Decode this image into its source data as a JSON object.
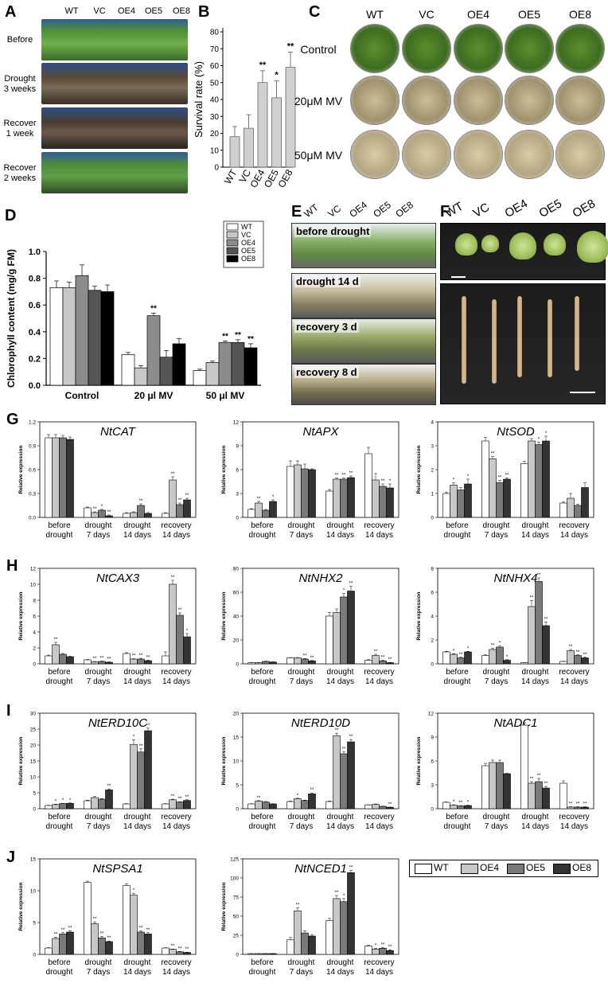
{
  "panels": {
    "A": {
      "label": "A",
      "genotypes": [
        "WT",
        "VC",
        "OE4",
        "OE5",
        "OE8"
      ],
      "rows": [
        "Before",
        "Drought\n3 weeks",
        "Recover\n1 week",
        "Recover\n2 weeks"
      ]
    },
    "B": {
      "label": "B",
      "chart_data": {
        "type": "bar",
        "ylabel": "Survival rate (%)",
        "categories": [
          "WT",
          "VC",
          "OE4",
          "OE5",
          "OE8"
        ],
        "values": [
          18,
          23,
          50,
          41,
          59
        ],
        "errors": [
          6,
          8,
          7,
          10,
          9
        ],
        "significance": [
          "",
          "",
          "**",
          "*",
          "**"
        ],
        "ylim": [
          0,
          80
        ],
        "yticks": [
          0,
          10,
          20,
          30,
          40,
          50,
          60,
          70,
          80
        ]
      }
    },
    "C": {
      "label": "C",
      "genotypes": [
        "WT",
        "VC",
        "OE4",
        "OE5",
        "OE8"
      ],
      "rows": [
        "Control",
        "20μM MV",
        "50μM MV"
      ]
    },
    "D": {
      "label": "D",
      "chart_data": {
        "type": "bar",
        "ylabel": "Chlorophyll content (mg/g FM)",
        "categories": [
          "Control",
          "20 μl MV",
          "50 μl MV"
        ],
        "series": [
          {
            "name": "WT",
            "values": [
              0.73,
              0.23,
              0.11
            ],
            "errors": [
              0.05,
              0.015,
              0.01
            ],
            "sig": [
              "",
              "",
              ""
            ]
          },
          {
            "name": "VC",
            "values": [
              0.73,
              0.13,
              0.17
            ],
            "errors": [
              0.04,
              0.015,
              0.01
            ],
            "sig": [
              "",
              "",
              ""
            ]
          },
          {
            "name": "OE4",
            "values": [
              0.82,
              0.52,
              0.32
            ],
            "errors": [
              0.08,
              0.02,
              0.01
            ],
            "sig": [
              "",
              "**",
              "**"
            ]
          },
          {
            "name": "OE5",
            "values": [
              0.71,
              0.21,
              0.32
            ],
            "errors": [
              0.03,
              0.05,
              0.02
            ],
            "sig": [
              "",
              "",
              "**"
            ]
          },
          {
            "name": "OE8",
            "values": [
              0.7,
              0.31,
              0.28
            ],
            "errors": [
              0.05,
              0.04,
              0.03
            ],
            "sig": [
              "",
              "",
              "**"
            ]
          }
        ],
        "colors": [
          "#ffffff",
          "#c8c8c8",
          "#8c8c8c",
          "#555555",
          "#000000"
        ],
        "ylim": [
          0,
          1.0
        ],
        "yticks": [
          "0.0",
          "0.2",
          "0.4",
          "0.6",
          "0.8",
          "1.0"
        ]
      }
    },
    "E": {
      "label": "E",
      "genotypes": [
        "WT",
        "VC",
        "OE4",
        "OE5",
        "OE8"
      ],
      "rows": [
        "before drought",
        "drought 14 d",
        "recovery 3 d",
        "recovery 8 d"
      ]
    },
    "F": {
      "label": "F",
      "genotypes": [
        "WT",
        "VC",
        "OE4",
        "OE5",
        "OE8"
      ]
    },
    "G": {
      "label": "G"
    },
    "H": {
      "label": "H"
    },
    "I": {
      "label": "I"
    },
    "J": {
      "label": "J"
    }
  },
  "expr_legend": [
    "WT",
    "OE4",
    "OE5",
    "OE8"
  ],
  "expr_colors": [
    "#ffffff",
    "#c8c8c8",
    "#7a7a7a",
    "#333333"
  ],
  "expr_ylabel": "Relative expression",
  "expr_conditions": [
    [
      "before",
      "drought"
    ],
    [
      "drought",
      "7 days"
    ],
    [
      "drought",
      "14 days"
    ],
    [
      "recovery",
      "14 days"
    ]
  ],
  "chart_data": [
    {
      "type": "bar",
      "gene": "NtCAT",
      "ylim": [
        0,
        1.2
      ],
      "yticks": [
        "0.0",
        "0.3",
        "0.6",
        "0.9",
        "1.2"
      ],
      "values": [
        [
          1.0,
          1.0,
          1.0,
          0.98
        ],
        [
          0.12,
          0.06,
          0.09,
          0.02
        ],
        [
          0.05,
          0.06,
          0.15,
          0.05
        ],
        [
          0.05,
          0.47,
          0.16,
          0.22
        ]
      ],
      "errors": [
        [
          0.04,
          0.04,
          0.03,
          0.03
        ],
        [
          0.01,
          0.01,
          0.01,
          0.01
        ],
        [
          0.01,
          0.01,
          0.02,
          0.01
        ],
        [
          0.01,
          0.04,
          0.02,
          0.02
        ]
      ],
      "sig": [
        [
          "",
          "",
          "",
          ""
        ],
        [
          "",
          "**",
          "*",
          "**"
        ],
        [
          "",
          "",
          "**",
          ""
        ],
        [
          "",
          "**",
          "**",
          "**"
        ]
      ]
    },
    {
      "type": "bar",
      "gene": "NtAPX",
      "ylim": [
        0,
        12
      ],
      "yticks": [
        "0",
        "3",
        "6",
        "9",
        "12"
      ],
      "values": [
        [
          1.0,
          1.8,
          0.9,
          2.0
        ],
        [
          6.4,
          6.6,
          6.1,
          6.0
        ],
        [
          3.3,
          4.8,
          4.8,
          5.0
        ],
        [
          8.0,
          4.7,
          3.9,
          3.7
        ]
      ],
      "errors": [
        [
          0.1,
          0.2,
          0.1,
          0.2
        ],
        [
          0.7,
          0.5,
          0.6,
          0.1
        ],
        [
          0.2,
          0.15,
          0.15,
          0.2
        ],
        [
          0.8,
          0.8,
          0.3,
          0.5
        ]
      ],
      "sig": [
        [
          "",
          "**",
          "",
          "*"
        ],
        [
          "",
          "",
          "",
          ""
        ],
        [
          "",
          "**",
          "**",
          "**"
        ],
        [
          "",
          "",
          "**",
          "*"
        ]
      ]
    },
    {
      "type": "bar",
      "gene": "NtSOD",
      "ylim": [
        0,
        4
      ],
      "yticks": [
        "0",
        "1",
        "2",
        "3",
        "4"
      ],
      "values": [
        [
          1.0,
          1.35,
          1.15,
          1.4
        ],
        [
          3.2,
          2.45,
          1.45,
          1.6
        ],
        [
          2.25,
          3.2,
          3.05,
          3.2
        ],
        [
          0.6,
          0.8,
          0.5,
          1.25
        ]
      ],
      "errors": [
        [
          0.05,
          0.1,
          0.1,
          0.2
        ],
        [
          0.15,
          0.1,
          0.1,
          0.05
        ],
        [
          0.1,
          0.1,
          0.1,
          0.2
        ],
        [
          0.05,
          0.2,
          0.05,
          0.2
        ]
      ],
      "sig": [
        [
          "",
          "*",
          "",
          "*"
        ],
        [
          "",
          "**",
          "**",
          "**"
        ],
        [
          "",
          "*",
          "*",
          "*"
        ],
        [
          "",
          "",
          "",
          ""
        ]
      ]
    },
    {
      "type": "bar",
      "gene": "NtCAX3",
      "ylim": [
        0,
        12
      ],
      "yticks": [
        "0",
        "2",
        "4",
        "6",
        "8",
        "10",
        "12"
      ],
      "values": [
        [
          1.0,
          2.4,
          1.2,
          0.9
        ],
        [
          0.5,
          0.25,
          0.3,
          0.2
        ],
        [
          1.3,
          0.6,
          0.6,
          0.4
        ],
        [
          1.0,
          10.0,
          6.1,
          3.4
        ]
      ],
      "errors": [
        [
          0.1,
          0.3,
          0.1,
          0.05
        ],
        [
          0.05,
          0.05,
          0.05,
          0.05
        ],
        [
          0.1,
          0.05,
          0.1,
          0.05
        ],
        [
          0.5,
          0.5,
          0.3,
          0.4
        ]
      ],
      "sig": [
        [
          "",
          "**",
          "",
          ""
        ],
        [
          "",
          "**",
          "**",
          "**"
        ],
        [
          "",
          "**",
          "**",
          "**"
        ],
        [
          "",
          "**",
          "**",
          "*"
        ]
      ]
    },
    {
      "type": "bar",
      "gene": "NtNHX2",
      "ylim": [
        0,
        80
      ],
      "yticks": [
        "0",
        "20",
        "40",
        "60",
        "80"
      ],
      "values": [
        [
          1.0,
          1.0,
          2.0,
          1.5
        ],
        [
          5.0,
          5.0,
          4.0,
          2.5
        ],
        [
          40,
          43,
          56,
          61
        ],
        [
          3.0,
          7.0,
          2.5,
          1.0
        ]
      ],
      "errors": [
        [
          0.1,
          0.1,
          0.3,
          0.2
        ],
        [
          0.3,
          0.3,
          0.5,
          0.3
        ],
        [
          3,
          3,
          3,
          4
        ],
        [
          0.5,
          1,
          0.5,
          0.2
        ]
      ],
      "sig": [
        [
          "",
          "",
          "",
          ""
        ],
        [
          "",
          "",
          "**",
          "**"
        ],
        [
          "",
          "",
          "*",
          "**"
        ],
        [
          "",
          "**",
          "**",
          "**"
        ]
      ]
    },
    {
      "type": "bar",
      "gene": "NtNHX4",
      "ylim": [
        0,
        8
      ],
      "yticks": [
        "0",
        "2",
        "4",
        "6",
        "8"
      ],
      "values": [
        [
          1.0,
          0.8,
          0.5,
          1.0
        ],
        [
          0.7,
          1.2,
          1.4,
          0.3
        ],
        [
          0.1,
          4.8,
          6.9,
          3.2
        ],
        [
          0.2,
          1.1,
          0.7,
          0.5
        ]
      ],
      "errors": [
        [
          0.05,
          0.05,
          0.05,
          0.05
        ],
        [
          0.05,
          0.1,
          0.1,
          0.05
        ],
        [
          0.02,
          0.5,
          0.3,
          0.3
        ],
        [
          0.02,
          0.1,
          0.05,
          0.05
        ]
      ],
      "sig": [
        [
          "",
          "*",
          "**",
          "*"
        ],
        [
          "",
          "**",
          "*",
          "*"
        ],
        [
          "",
          "**",
          "**",
          "**"
        ],
        [
          "",
          "**",
          "**",
          "**"
        ]
      ]
    },
    {
      "type": "bar",
      "gene": "NtERD10C",
      "ylim": [
        0,
        30
      ],
      "yticks": [
        "0",
        "5",
        "10",
        "15",
        "20",
        "25",
        "30"
      ],
      "values": [
        [
          1.0,
          1.3,
          1.6,
          1.7
        ],
        [
          2.5,
          3.5,
          3.0,
          5.9
        ],
        [
          1.5,
          20.2,
          17.8,
          24.5
        ],
        [
          1.5,
          2.8,
          2.1,
          2.6
        ]
      ],
      "errors": [
        [
          0.1,
          0.1,
          0.1,
          0.1
        ],
        [
          0.2,
          0.3,
          0.2,
          0.3
        ],
        [
          0.1,
          1.5,
          1.0,
          0.8
        ],
        [
          0.1,
          0.2,
          0.1,
          0.2
        ]
      ],
      "sig": [
        [
          "",
          "*",
          "*",
          "*"
        ],
        [
          "",
          "",
          "",
          "**"
        ],
        [
          "",
          "*",
          "**",
          "**"
        ],
        [
          "",
          "**",
          "**",
          "**"
        ]
      ]
    },
    {
      "type": "bar",
      "gene": "NtERD10D",
      "ylim": [
        0,
        20
      ],
      "yticks": [
        "0",
        "5",
        "10",
        "15",
        "20"
      ],
      "values": [
        [
          1.0,
          1.6,
          1.4,
          1.0
        ],
        [
          1.5,
          2.1,
          1.7,
          3.1
        ],
        [
          1.5,
          15.3,
          11.5,
          14.0
        ],
        [
          0.8,
          0.9,
          0.5,
          0.3
        ]
      ],
      "errors": [
        [
          0.05,
          0.1,
          0.1,
          0.05
        ],
        [
          0.1,
          0.1,
          0.1,
          0.2
        ],
        [
          0.1,
          0.5,
          0.4,
          0.5
        ],
        [
          0.05,
          0.1,
          0.05,
          0.05
        ]
      ],
      "sig": [
        [
          "",
          "**",
          "",
          ""
        ],
        [
          "",
          "*",
          "",
          "**"
        ],
        [
          "",
          "**",
          "**",
          "**"
        ],
        [
          "",
          "",
          "",
          "**"
        ]
      ]
    },
    {
      "type": "bar",
      "gene": "NtADC1",
      "ylim": [
        0,
        12
      ],
      "yticks": [
        "0",
        "3",
        "6",
        "9",
        "12"
      ],
      "values": [
        [
          0.8,
          0.45,
          0.35,
          0.4
        ],
        [
          5.4,
          5.8,
          5.8,
          4.4
        ],
        [
          10.5,
          3.2,
          3.4,
          2.6
        ],
        [
          3.2,
          0.2,
          0.2,
          0.2
        ]
      ],
      "errors": [
        [
          0.05,
          0.05,
          0.05,
          0.05
        ],
        [
          0.3,
          0.3,
          0.3,
          0.05
        ],
        [
          0.3,
          0.2,
          0.4,
          0.2
        ],
        [
          0.3,
          0.05,
          0.05,
          0.05
        ]
      ],
      "sig": [
        [
          "",
          "*",
          "**",
          "*"
        ],
        [
          "",
          "",
          "",
          ""
        ],
        [
          "",
          "**",
          "**",
          "**"
        ],
        [
          "",
          "**",
          "**",
          "**"
        ]
      ]
    },
    {
      "type": "bar",
      "gene": "NtSPSA1",
      "ylim": [
        0,
        15
      ],
      "yticks": [
        "0",
        "5",
        "10",
        "15"
      ],
      "values": [
        [
          1.0,
          2.5,
          3.2,
          3.5
        ],
        [
          11.3,
          4.8,
          2.6,
          2.0
        ],
        [
          10.8,
          9.3,
          3.5,
          3.2
        ],
        [
          1.0,
          0.8,
          0.4,
          0.3
        ]
      ],
      "errors": [
        [
          0.05,
          0.2,
          0.2,
          0.2
        ],
        [
          0.2,
          0.3,
          0.2,
          0.1
        ],
        [
          0.3,
          0.3,
          0.2,
          0.2
        ],
        [
          0.05,
          0.05,
          0.05,
          0.05
        ]
      ],
      "sig": [
        [
          "",
          "**",
          "**",
          "**"
        ],
        [
          "",
          "**",
          "**",
          "**"
        ],
        [
          "",
          "*",
          "**",
          "**"
        ],
        [
          "",
          "**",
          "**",
          "**"
        ]
      ]
    },
    {
      "type": "bar",
      "gene": "NtNCED1",
      "ylim": [
        0,
        125
      ],
      "yticks": [
        "0",
        "25",
        "50",
        "75",
        "100",
        "125"
      ],
      "values": [
        [
          1.0,
          1.0,
          1.0,
          1.0
        ],
        [
          19,
          57,
          28,
          24
        ],
        [
          44,
          73,
          69,
          107
        ],
        [
          11,
          7,
          8,
          5
        ]
      ],
      "errors": [
        [
          0.1,
          0.1,
          0.1,
          0.1
        ],
        [
          3,
          4,
          3,
          2
        ],
        [
          3,
          4,
          4,
          3
        ],
        [
          1,
          1,
          1,
          1
        ]
      ],
      "sig": [
        [
          "",
          "",
          "",
          ""
        ],
        [
          "",
          "**",
          "",
          ""
        ],
        [
          "",
          "**",
          "*",
          "**"
        ],
        [
          "",
          "*",
          "**",
          "**"
        ]
      ]
    }
  ]
}
